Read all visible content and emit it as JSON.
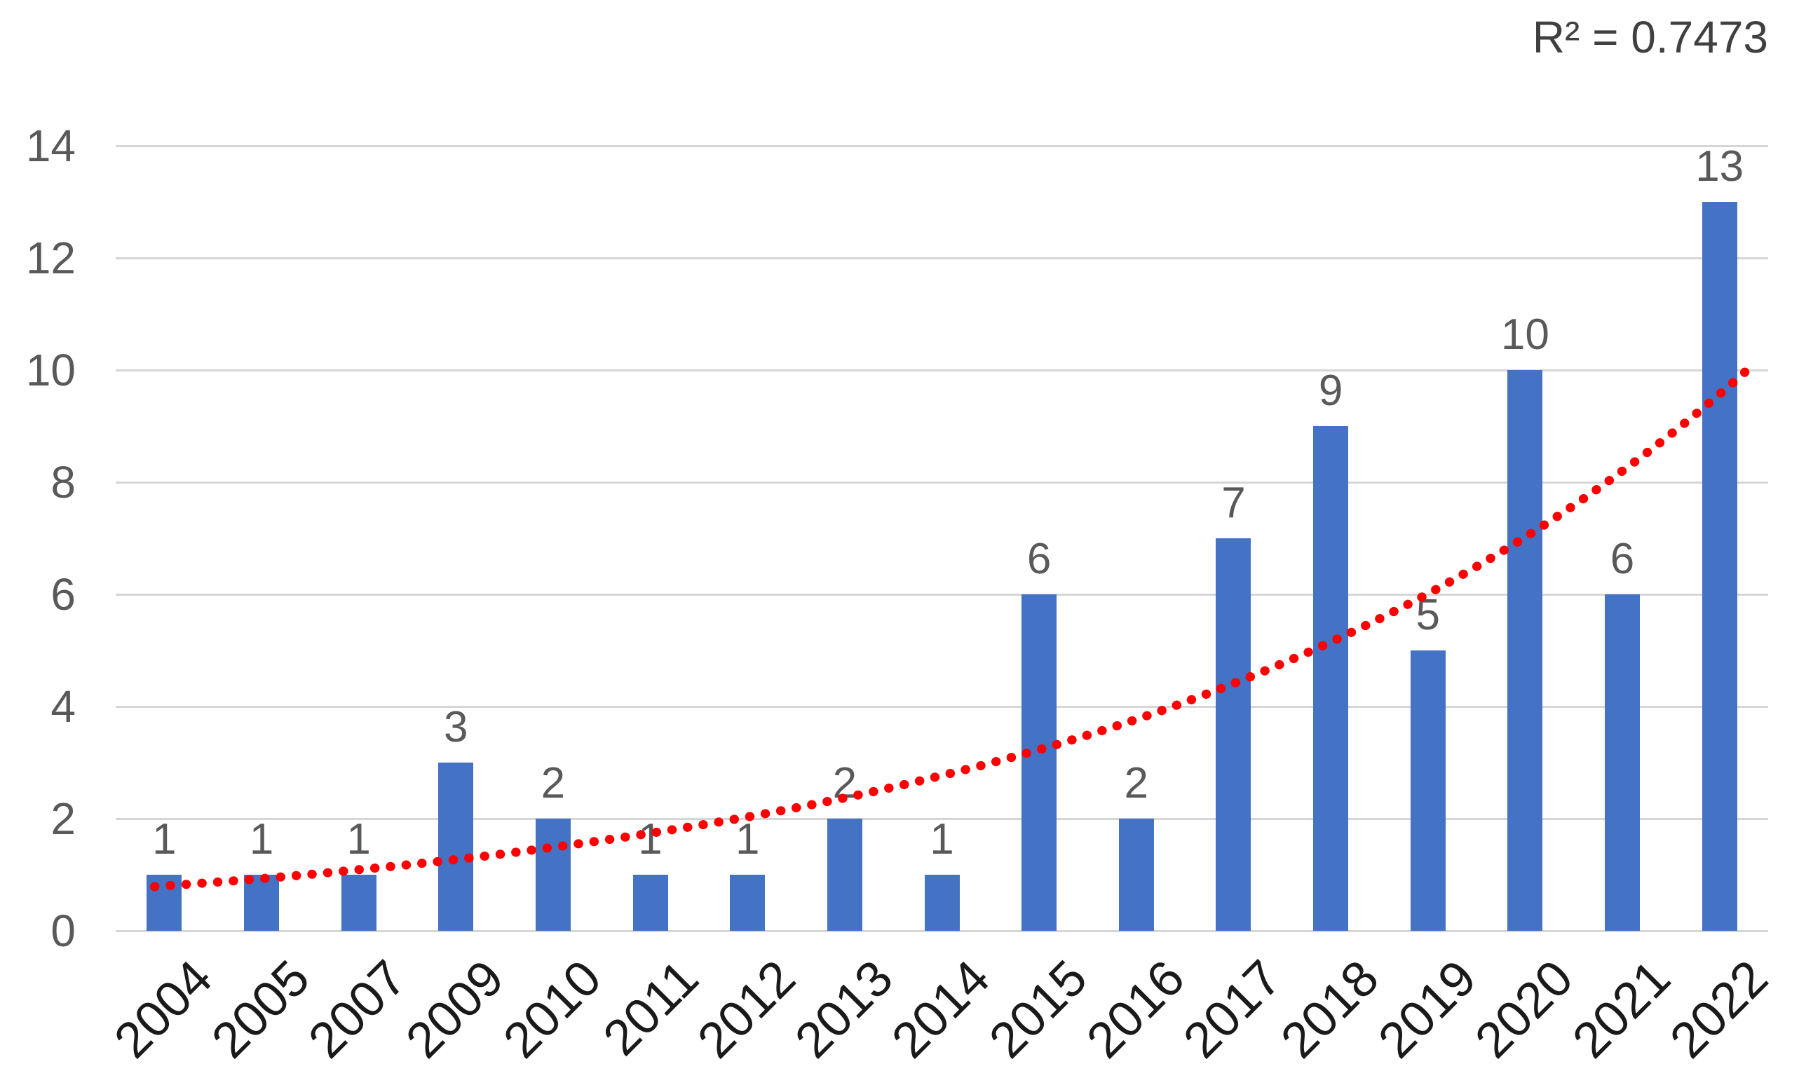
{
  "annotation": {
    "r_squared_label": "R² = 0.7473"
  },
  "chart_data": {
    "type": "bar",
    "title": "",
    "xlabel": "",
    "ylabel": "",
    "categories": [
      "2004",
      "2005",
      "2007",
      "2009",
      "2010",
      "2011",
      "2012",
      "2013",
      "2014",
      "2015",
      "2016",
      "2017",
      "2018",
      "2019",
      "2020",
      "2021",
      "2022"
    ],
    "values": [
      1,
      1,
      1,
      3,
      2,
      1,
      1,
      2,
      1,
      6,
      2,
      7,
      9,
      5,
      10,
      6,
      13
    ],
    "data_labels_shown": true,
    "ylim": [
      0,
      14
    ],
    "yticks": [
      0,
      2,
      4,
      6,
      8,
      10,
      12,
      14
    ],
    "grid": "horizontal",
    "legend_position": "none",
    "colors": {
      "bar": "#4472C4",
      "grid": "#d6d6d6",
      "data_label": "#595959",
      "y_tick_label": "#595959",
      "x_tick_label": "#1a1a1a",
      "trendline": "#ff0000",
      "r_squared_text": "#404040"
    },
    "trendline": {
      "type": "exponential",
      "style": "dotted",
      "r_squared": 0.7473,
      "values": [
        0.8,
        0.93,
        1.09,
        1.27,
        1.49,
        1.74,
        2.03,
        2.37,
        2.77,
        3.23,
        3.77,
        4.41,
        5.15,
        6.01,
        7.02,
        8.2,
        9.57
      ]
    }
  }
}
